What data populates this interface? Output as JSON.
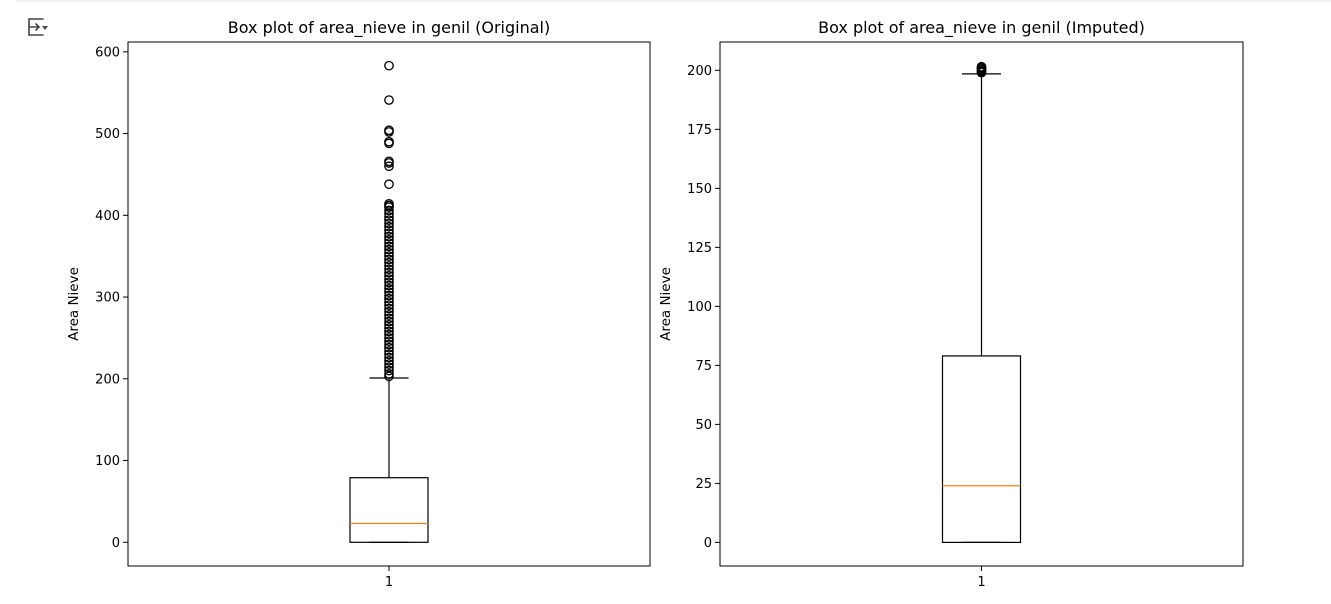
{
  "toolbar": {
    "output_toggle_icon": "output-toggle-icon"
  },
  "chart_data": [
    {
      "type": "box",
      "title": "Box plot of area_nieve in genil (Original)",
      "xlabel": "",
      "ylabel": "Area Nieve",
      "categories": [
        "1"
      ],
      "ylim": [
        -29,
        612
      ],
      "yticks": [
        0,
        100,
        200,
        300,
        400,
        500,
        600
      ],
      "grid": false,
      "box": {
        "whisker_low": 0,
        "q1": 0,
        "median": 23,
        "q3": 79,
        "whisker_high": 201
      },
      "outliers": [
        583,
        541,
        504,
        502,
        490,
        488,
        466,
        464,
        460,
        438,
        414,
        412,
        410,
        406,
        402,
        398,
        394,
        390,
        386,
        382,
        378,
        374,
        370,
        366,
        362,
        358,
        354,
        350,
        346,
        342,
        338,
        334,
        330,
        326,
        322,
        318,
        314,
        310,
        306,
        302,
        298,
        294,
        290,
        286,
        282,
        278,
        274,
        270,
        266,
        262,
        258,
        254,
        250,
        246,
        242,
        238,
        234,
        230,
        226,
        222,
        218,
        214,
        210,
        206,
        203
      ],
      "colors": {
        "box": "#000000",
        "median": "#ff7f0e",
        "flier": "#000000"
      }
    },
    {
      "type": "box",
      "title": "Box plot of area_nieve in genil (Imputed)",
      "xlabel": "",
      "ylabel": "Area Nieve",
      "categories": [
        "1"
      ],
      "ylim": [
        -10,
        212
      ],
      "yticks": [
        0,
        25,
        50,
        75,
        100,
        125,
        150,
        175,
        200
      ],
      "grid": false,
      "box": {
        "whisker_low": 0,
        "q1": 0,
        "median": 24,
        "q3": 79,
        "whisker_high": 198.5
      },
      "outliers": [
        199,
        199.5,
        200,
        200.5,
        201,
        201.5
      ],
      "colors": {
        "box": "#000000",
        "median": "#ff7f0e",
        "flier": "#000000"
      }
    }
  ]
}
